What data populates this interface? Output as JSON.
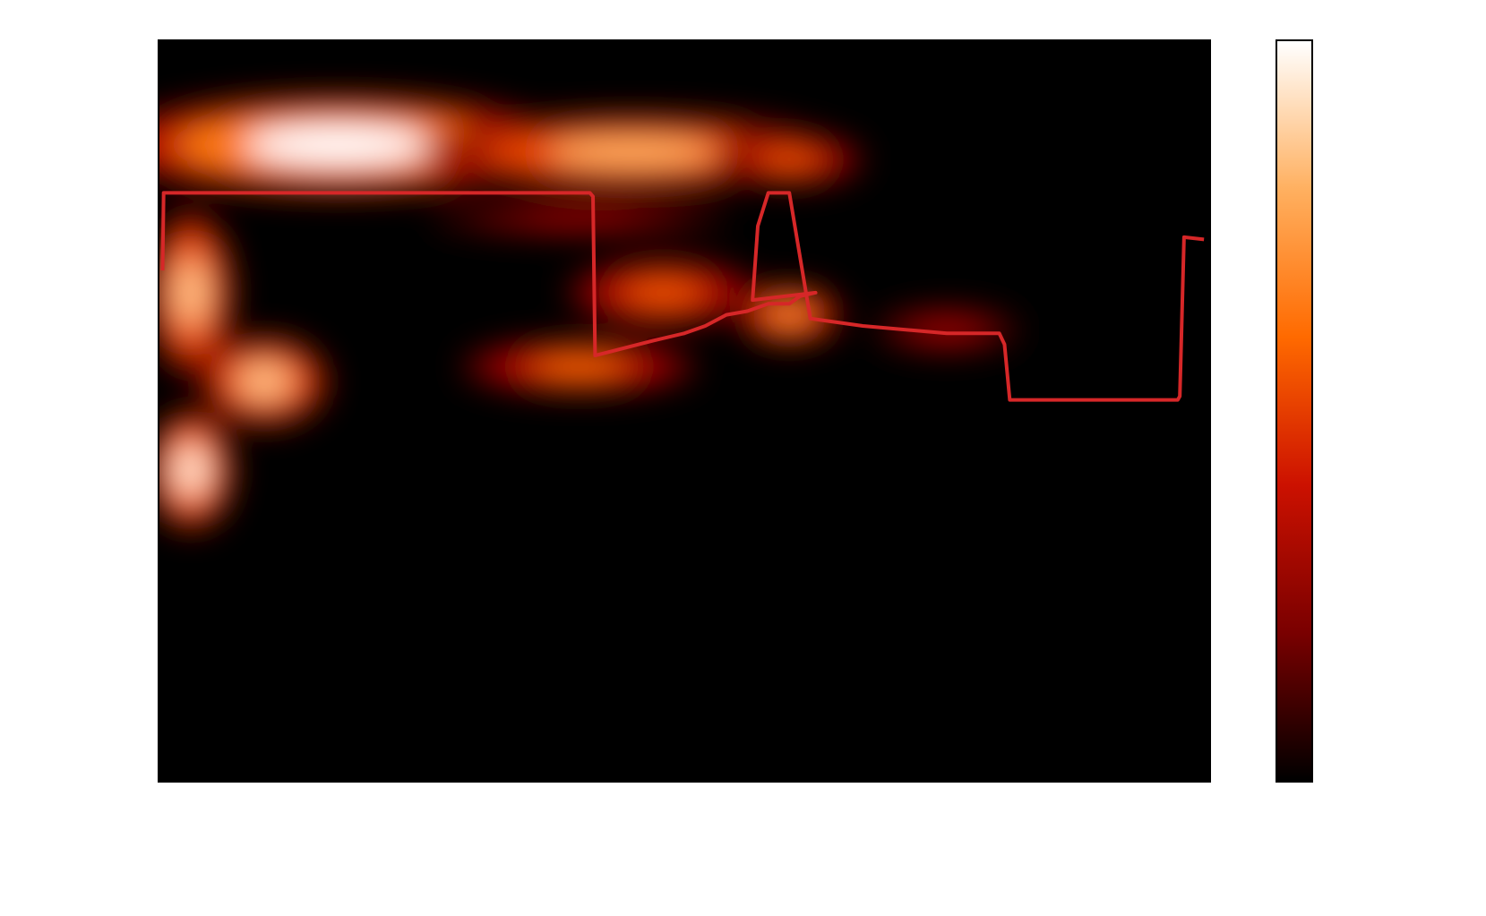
{
  "chart_data": {
    "type": "heatmap",
    "title": "",
    "xlabel": "",
    "ylabel": "",
    "colormap": "gist_heat",
    "colorbar_colors": [
      "#000000",
      "#7a0000",
      "#cc1100",
      "#ff6a00",
      "#ffb060",
      "#ffffff"
    ],
    "grid": false,
    "legend": "none",
    "xlim": [
      0,
      100
    ],
    "ylim": [
      0,
      100
    ],
    "intensity_blobs": [
      {
        "x": 17,
        "y": 86,
        "rx": 22,
        "ry": 6.5,
        "v": 1.0
      },
      {
        "x": 45,
        "y": 85,
        "rx": 20,
        "ry": 5,
        "v": 0.8
      },
      {
        "x": 60,
        "y": 84,
        "rx": 7,
        "ry": 3.5,
        "v": 0.55
      },
      {
        "x": 40,
        "y": 76,
        "rx": 14,
        "ry": 2,
        "v": 0.35
      },
      {
        "x": 3,
        "y": 66,
        "rx": 4,
        "ry": 11,
        "v": 0.85
      },
      {
        "x": 48,
        "y": 66,
        "rx": 9,
        "ry": 4.5,
        "v": 0.55
      },
      {
        "x": 60,
        "y": 63,
        "rx": 5,
        "ry": 4,
        "v": 0.7
      },
      {
        "x": 40,
        "y": 56,
        "rx": 11,
        "ry": 3.5,
        "v": 0.6
      },
      {
        "x": 10,
        "y": 54,
        "rx": 6,
        "ry": 6,
        "v": 0.85
      },
      {
        "x": 3,
        "y": 42,
        "rx": 4,
        "ry": 8,
        "v": 0.95
      },
      {
        "x": 75,
        "y": 61,
        "rx": 7,
        "ry": 3,
        "v": 0.3
      }
    ],
    "series": [
      {
        "x": [
          0.3,
          0.4,
          41,
          41.3,
          41.5,
          47,
          50,
          52,
          54,
          56,
          58,
          60,
          61,
          62.5,
          56.5,
          57,
          58,
          58.3,
          58.8,
          60,
          62,
          67,
          75,
          80,
          80.5,
          81,
          82,
          97,
          97.2,
          97.6,
          99.5
        ],
        "y": [
          69,
          79.5,
          79.5,
          79,
          57.5,
          59.5,
          60.5,
          61.5,
          63,
          63.5,
          64.5,
          64.5,
          65.5,
          66,
          65,
          75,
          79.5,
          79.5,
          79.5,
          79.5,
          62.5,
          61.5,
          60.5,
          60.5,
          59,
          51.5,
          51.5,
          51.5,
          52,
          73.5,
          73.2
        ],
        "color": "#d62728"
      }
    ]
  }
}
